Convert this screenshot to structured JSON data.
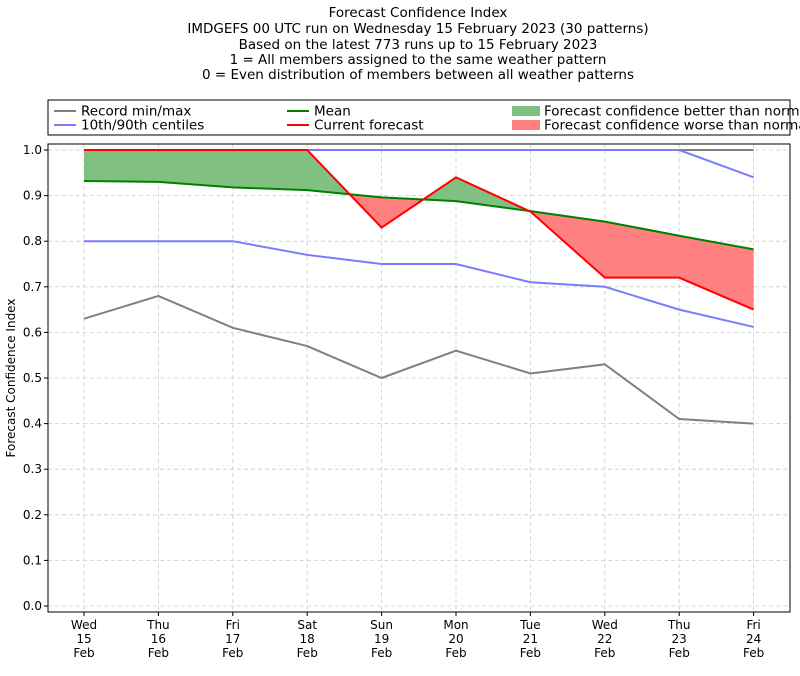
{
  "chart_data": {
    "type": "line",
    "title": [
      "Forecast Confidence Index",
      "IMDGEFS 00 UTC run on Wednesday 15 February 2023 (30 patterns)",
      "Based on the latest 773 runs up to 15 February 2023",
      "1 = All members assigned to the same weather pattern",
      "0 = Even distribution of members between all weather patterns"
    ],
    "xlabel": "",
    "ylabel": "Forecast Confidence Index",
    "ylim": [
      0,
      1
    ],
    "yticks": [
      "0.0",
      "0.1",
      "0.2",
      "0.3",
      "0.4",
      "0.5",
      "0.6",
      "0.7",
      "0.8",
      "0.9",
      "1.0"
    ],
    "categories": [
      [
        "Wed",
        "15",
        "Feb"
      ],
      [
        "Thu",
        "16",
        "Feb"
      ],
      [
        "Fri",
        "17",
        "Feb"
      ],
      [
        "Sat",
        "18",
        "Feb"
      ],
      [
        "Sun",
        "19",
        "Feb"
      ],
      [
        "Mon",
        "20",
        "Feb"
      ],
      [
        "Tue",
        "21",
        "Feb"
      ],
      [
        "Wed",
        "22",
        "Feb"
      ],
      [
        "Thu",
        "23",
        "Feb"
      ],
      [
        "Fri",
        "24",
        "Feb"
      ]
    ],
    "grid": true,
    "legend_placement": "top, above plot",
    "series": {
      "record_max": {
        "values": [
          1,
          1,
          1,
          1,
          1,
          1,
          1,
          1,
          1,
          1
        ],
        "color": "#808080"
      },
      "record_min": {
        "name": "Record min/max",
        "values": [
          0.63,
          0.68,
          0.61,
          0.57,
          0.5,
          0.56,
          0.51,
          0.53,
          0.41,
          0.4
        ],
        "color": "#808080"
      },
      "centile_90": {
        "values": [
          1,
          1,
          1,
          1,
          1,
          1,
          1,
          1,
          1,
          0.94
        ],
        "color": "#7b7bff"
      },
      "centile_10": {
        "name": "10th/90th centiles",
        "values": [
          0.8,
          0.8,
          0.8,
          0.77,
          0.75,
          0.75,
          0.71,
          0.7,
          0.65,
          0.612
        ],
        "color": "#7b7bff"
      },
      "mean": {
        "name": "Mean",
        "values": [
          0.932,
          0.93,
          0.918,
          0.912,
          0.896,
          0.888,
          0.866,
          0.843,
          0.812,
          0.782
        ],
        "color": "#008000"
      },
      "current": {
        "name": "Current forecast",
        "values": [
          1,
          1,
          1,
          1,
          0.83,
          0.94,
          0.865,
          0.72,
          0.72,
          0.65
        ],
        "color": "#ff0000"
      }
    },
    "fills": {
      "better": {
        "name": "Forecast confidence better than normal",
        "color": "#80c080"
      },
      "worse": {
        "name": "Forecast confidence worse than normal",
        "color": "#ff8080"
      }
    }
  }
}
